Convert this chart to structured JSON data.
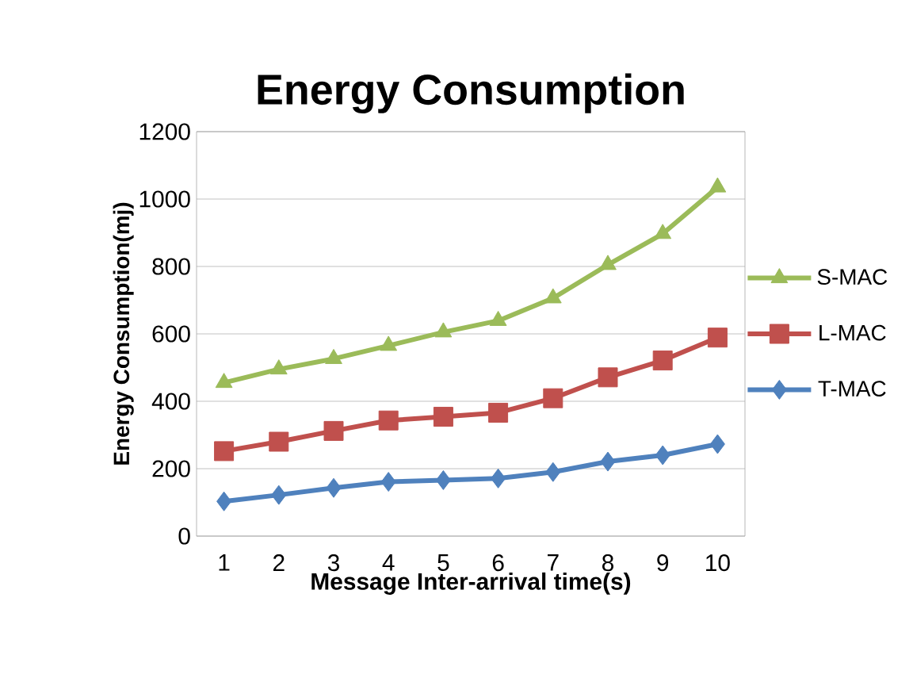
{
  "chart_data": {
    "type": "line",
    "title": "Energy Consumption",
    "xlabel": "Message Inter-arrival time(s)",
    "ylabel": "Energy Consumption(mj)",
    "categories": [
      "1",
      "2",
      "3",
      "4",
      "5",
      "6",
      "7",
      "8",
      "9",
      "10"
    ],
    "series": [
      {
        "name": "S-MAC",
        "color": "#9bbb59",
        "marker": "triangle",
        "values": [
          455,
          495,
          526,
          565,
          605,
          639,
          706,
          805,
          897,
          1035
        ]
      },
      {
        "name": "L-MAC",
        "color": "#c0504d",
        "marker": "square",
        "values": [
          252,
          280,
          312,
          343,
          354,
          366,
          409,
          471,
          521,
          589
        ]
      },
      {
        "name": "T-MAC",
        "color": "#4f81bd",
        "marker": "diamond",
        "values": [
          103,
          122,
          143,
          161,
          166,
          171,
          190,
          221,
          240,
          273
        ]
      }
    ],
    "ylim": [
      0,
      1200
    ],
    "yticks": [
      0,
      200,
      400,
      600,
      800,
      1000,
      1200
    ],
    "grid": "y",
    "legend": "right",
    "line_style": "solid"
  }
}
